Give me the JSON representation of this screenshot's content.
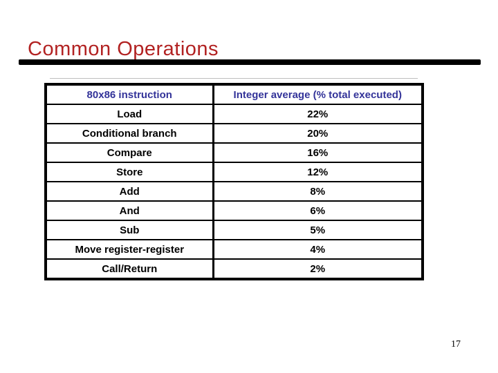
{
  "slide": {
    "title": "Common Operations",
    "page_number": "17"
  },
  "table": {
    "headers": [
      "80x86 instruction",
      "Integer average (% total executed)"
    ],
    "rows": [
      [
        "Load",
        "22%"
      ],
      [
        "Conditional branch",
        "20%"
      ],
      [
        "Compare",
        "16%"
      ],
      [
        "Store",
        "12%"
      ],
      [
        "Add",
        "8%"
      ],
      [
        "And",
        "6%"
      ],
      [
        "Sub",
        "5%"
      ],
      [
        "Move register-register",
        "4%"
      ],
      [
        "Call/Return",
        "2%"
      ]
    ]
  },
  "colors": {
    "title_red": "#b22222",
    "header_navy": "#333399",
    "body_text": "#000000",
    "rule_black": "#000000"
  }
}
